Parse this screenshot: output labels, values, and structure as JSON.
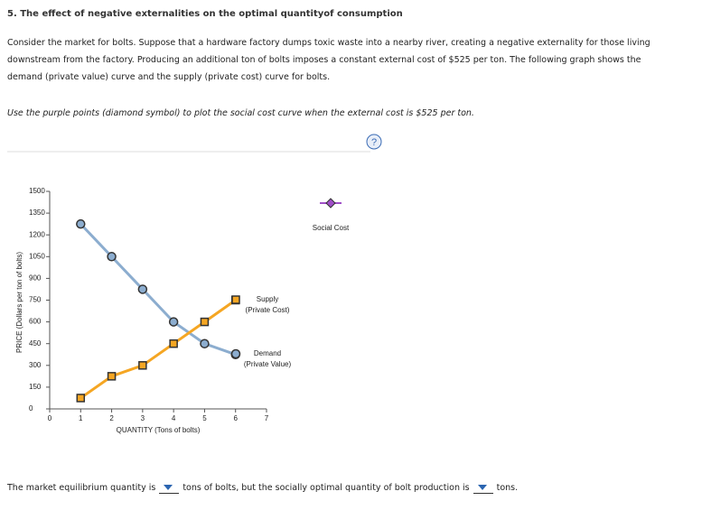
{
  "header": {
    "title": "5. The effect of negative externalities on the optimal quantityof consumption"
  },
  "intro": "Consider the market for bolts. Suppose that a hardware factory dumps toxic waste into a nearby river, creating a negative externality for those living downstream from the factory. Producing an additional ton of bolts imposes a constant external cost of $525 per ton. The following graph shows the demand (private value) curve and the supply (private cost) curve for bolts.",
  "instruction": "Use the purple points (diamond symbol) to plot the social cost curve when the external cost is $525 per ton.",
  "help_icon": "?",
  "chart_data": {
    "type": "line",
    "x_label": "QUANTITY (Tons of bolts)",
    "y_label": "PRICE (Dollars per ton of bolts)",
    "x": [
      1,
      2,
      3,
      4,
      5,
      6
    ],
    "xlim": [
      0,
      7
    ],
    "xticks": [
      0,
      1,
      2,
      3,
      4,
      5,
      6,
      7
    ],
    "ylim": [
      0,
      1500
    ],
    "yticks": [
      0,
      150,
      300,
      450,
      600,
      750,
      900,
      1050,
      1200,
      1350,
      1500
    ],
    "series": [
      {
        "name": "Demand",
        "subname": "(Private Value)",
        "color": "#8cadcf",
        "marker": "circle",
        "values": [
          1275,
          1050,
          825,
          600,
          450,
          375
        ]
      },
      {
        "name": "Supply",
        "subname": "(Private Cost)",
        "color": "#f5a623",
        "marker": "square",
        "values": [
          75,
          225,
          300,
          450,
          600,
          750
        ]
      }
    ],
    "tool": {
      "name": "Social Cost",
      "color": "#a04fc8"
    }
  },
  "answer": {
    "part1": "The market equilibrium quantity is",
    "part2": "tons of bolts, but the socially optimal quantity of bolt production is",
    "part3": "tons."
  }
}
